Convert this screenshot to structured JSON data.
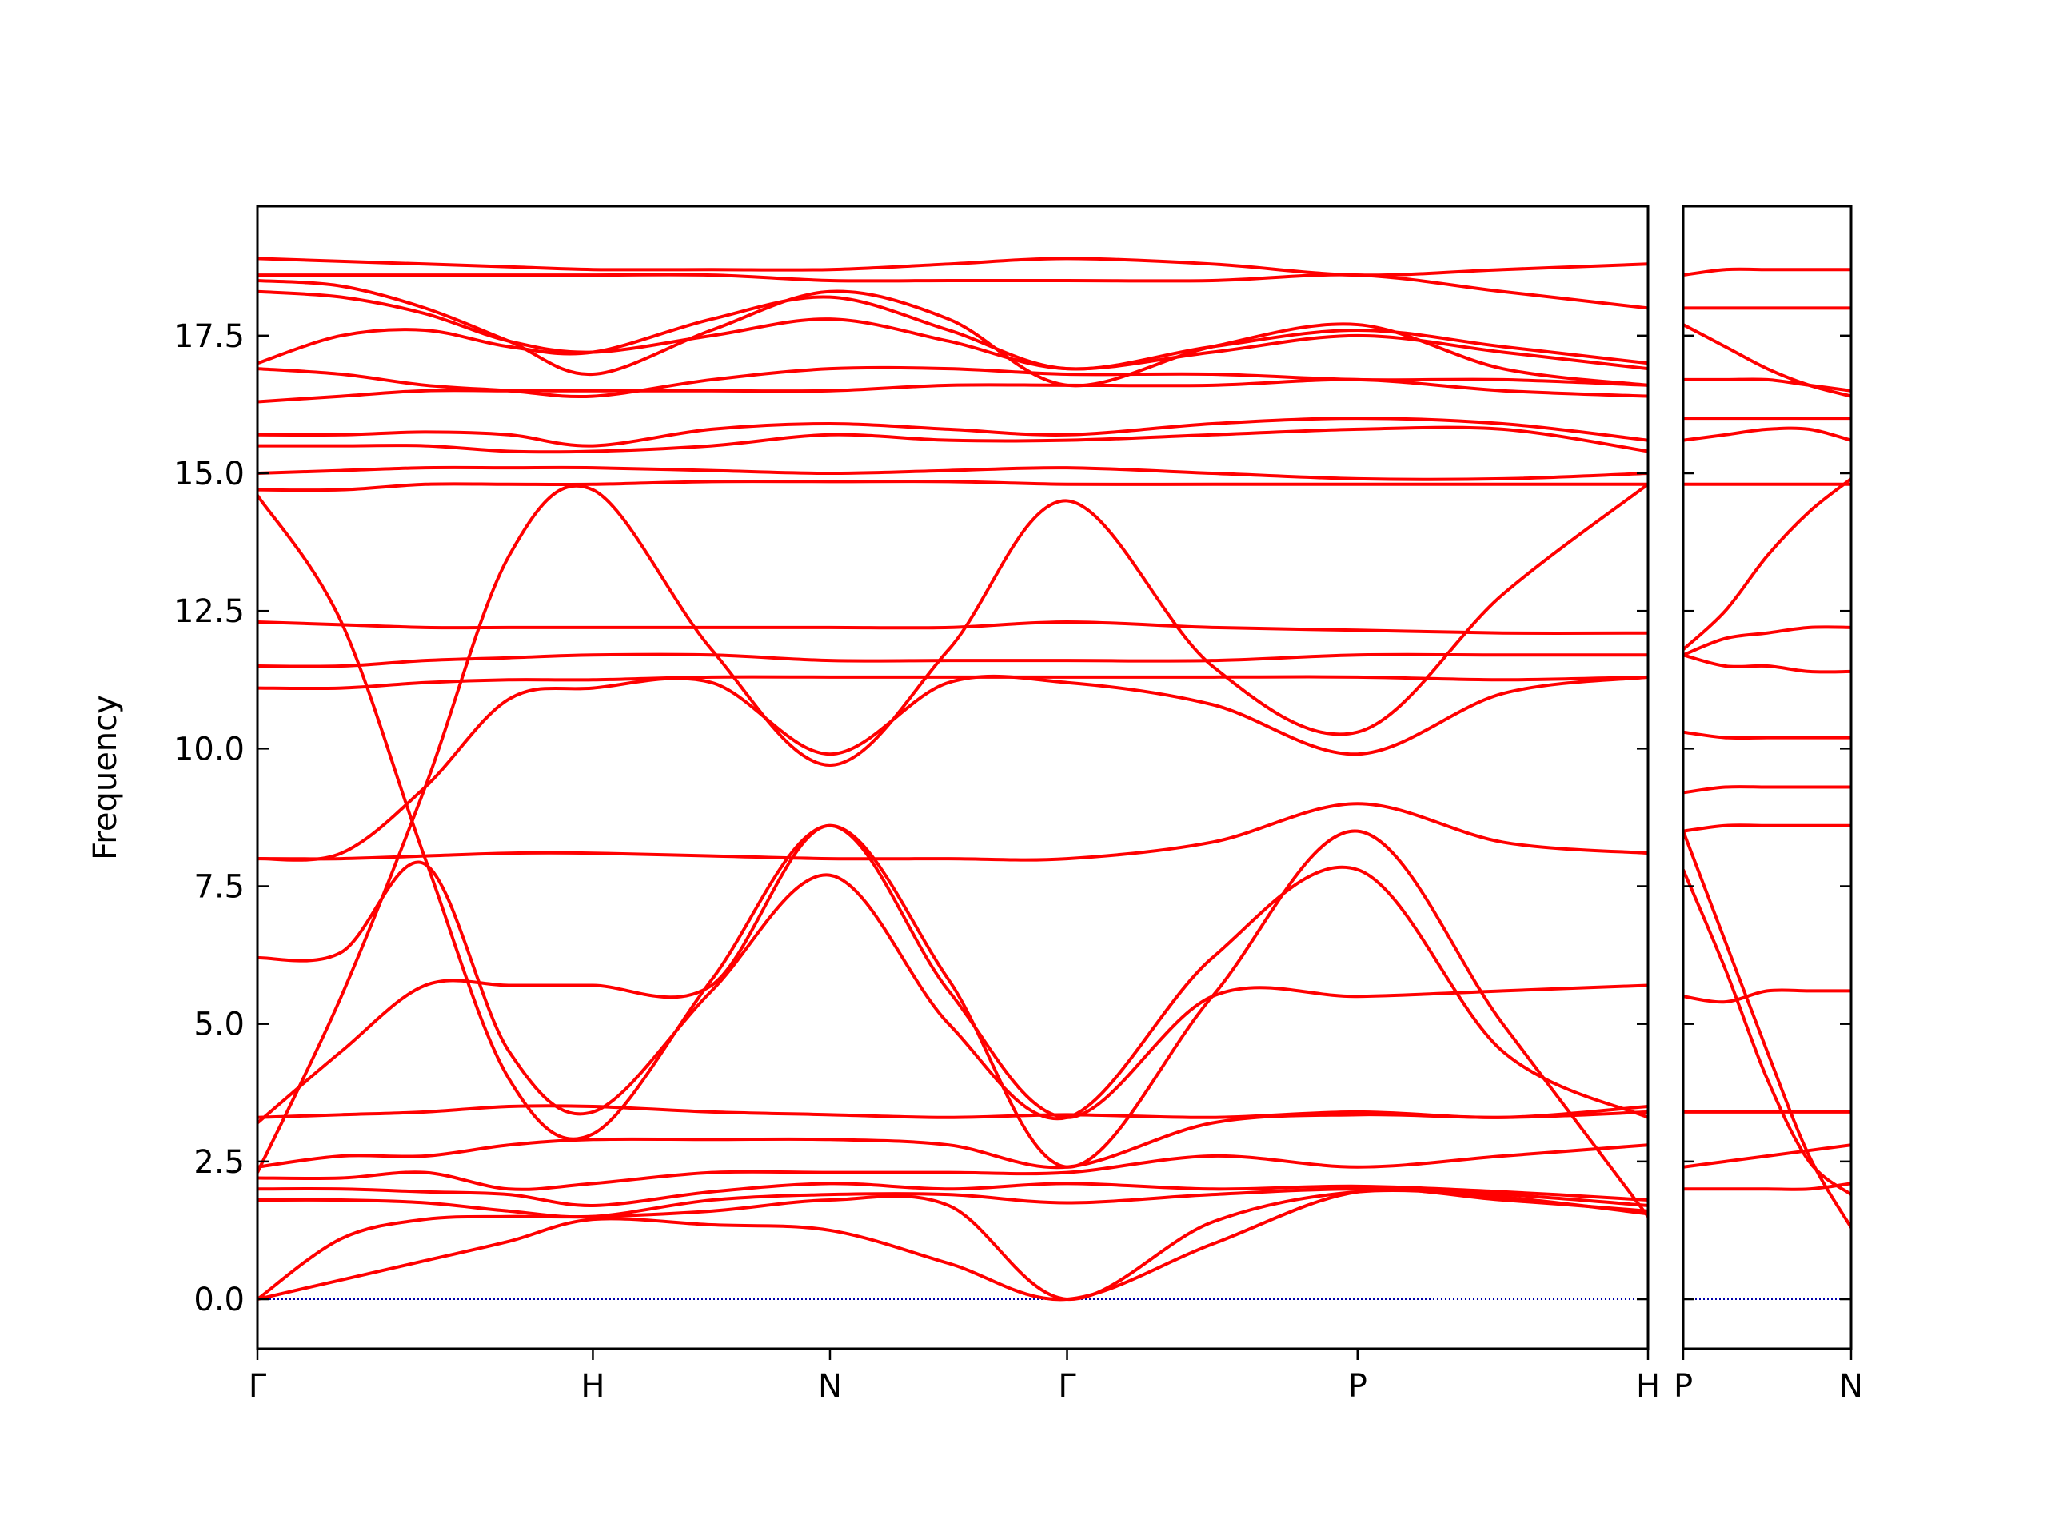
{
  "chart_data": [
    {
      "type": "line",
      "ylabel": "Frequency",
      "color": "#ff0000",
      "xlim": [
        0,
        4.146
      ],
      "ylim": [
        -0.9,
        19.85
      ],
      "xticks": [
        {
          "value": 0,
          "label": "Γ"
        },
        {
          "value": 1,
          "label": "H"
        },
        {
          "value": 1.707,
          "label": "N"
        },
        {
          "value": 2.414,
          "label": "Γ"
        },
        {
          "value": 3.28,
          "label": "P"
        },
        {
          "value": 4.146,
          "label": "H"
        }
      ],
      "yticks": [
        {
          "value": 0,
          "label": "0.0"
        },
        2.5,
        {
          "value": 5,
          "label": "5.0"
        },
        7.5,
        {
          "value": 10,
          "label": "10.0"
        },
        12.5,
        {
          "value": 15,
          "label": "15.0"
        },
        17.5
      ],
      "ytick_labels": true,
      "hline": 0,
      "hline_color": "#0000aa",
      "x": [
        0,
        0.25,
        0.5,
        0.75,
        1,
        1.354,
        1.707,
        2.061,
        2.414,
        2.847,
        3.28,
        3.713,
        4.146
      ],
      "series": [
        {
          "values": [
            0,
            0.35,
            0.7,
            1.05,
            1.45,
            1.35,
            1.25,
            0.65,
            0,
            1.0,
            1.95,
            1.8,
            1.6
          ]
        },
        {
          "values": [
            0,
            1.1,
            1.45,
            1.5,
            1.5,
            1.6,
            1.8,
            1.7,
            0,
            1.4,
            1.95,
            1.85,
            1.55
          ]
        },
        {
          "values": [
            1.8,
            1.8,
            1.75,
            1.6,
            1.5,
            1.8,
            1.9,
            1.9,
            1.75,
            1.9,
            2.0,
            1.9,
            1.7
          ]
        },
        {
          "values": [
            2.0,
            2.0,
            1.95,
            1.9,
            1.7,
            1.95,
            2.1,
            2.0,
            2.1,
            2.0,
            2.05,
            1.95,
            1.8
          ]
        },
        {
          "values": [
            2.2,
            2.2,
            2.3,
            2.0,
            2.1,
            2.3,
            2.3,
            2.3,
            2.3,
            2.6,
            2.4,
            2.6,
            2.8
          ]
        },
        {
          "values": [
            2.4,
            2.6,
            2.6,
            2.8,
            2.9,
            2.9,
            2.9,
            2.8,
            2.4,
            3.2,
            3.35,
            3.3,
            3.4
          ]
        },
        {
          "values": [
            3.3,
            3.35,
            3.4,
            3.5,
            3.5,
            3.4,
            3.35,
            3.3,
            3.35,
            3.3,
            3.4,
            3.3,
            3.5
          ]
        },
        {
          "values": [
            14.6,
            12.3,
            8.0,
            4.0,
            3.0,
            5.8,
            8.6,
            5.8,
            2.4,
            5.5,
            8.5,
            5.0,
            1.5
          ]
        },
        {
          "values": [
            2.3,
            5.5,
            9.3,
            13.5,
            14.7,
            11.8,
            9.7,
            11.8,
            14.5,
            11.5,
            10.3,
            12.8,
            14.8
          ]
        },
        {
          "values": [
            6.2,
            6.3,
            7.9,
            4.5,
            3.4,
            5.6,
            7.7,
            5.0,
            3.3,
            6.2,
            7.8,
            4.5,
            3.3
          ]
        },
        {
          "values": [
            8.0,
            8.1,
            9.3,
            10.9,
            11.1,
            11.2,
            9.9,
            11.2,
            11.2,
            10.8,
            9.9,
            11.0,
            11.3
          ]
        },
        {
          "values": [
            3.2,
            4.5,
            5.7,
            5.7,
            5.7,
            5.7,
            8.6,
            5.6,
            3.3,
            5.5,
            5.5,
            5.6,
            5.7
          ]
        },
        {
          "values": [
            8.0,
            8.0,
            8.05,
            8.1,
            8.1,
            8.05,
            8.0,
            8.0,
            8.0,
            8.3,
            9.0,
            8.3,
            8.1
          ]
        },
        {
          "values": [
            11.1,
            11.1,
            11.2,
            11.25,
            11.25,
            11.3,
            11.3,
            11.3,
            11.3,
            11.3,
            11.3,
            11.25,
            11.3
          ]
        },
        {
          "values": [
            11.5,
            11.5,
            11.6,
            11.65,
            11.7,
            11.7,
            11.6,
            11.6,
            11.6,
            11.6,
            11.7,
            11.7,
            11.7
          ]
        },
        {
          "values": [
            12.3,
            12.25,
            12.2,
            12.2,
            12.2,
            12.2,
            12.2,
            12.2,
            12.3,
            12.2,
            12.15,
            12.1,
            12.1
          ]
        },
        {
          "values": [
            14.7,
            14.7,
            14.8,
            14.8,
            14.8,
            14.85,
            14.85,
            14.85,
            14.8,
            14.8,
            14.8,
            14.8,
            14.8
          ]
        },
        {
          "values": [
            15.0,
            15.05,
            15.1,
            15.1,
            15.1,
            15.05,
            15.0,
            15.05,
            15.1,
            15.0,
            14.9,
            14.9,
            15.0
          ]
        },
        {
          "values": [
            15.5,
            15.5,
            15.5,
            15.4,
            15.4,
            15.5,
            15.7,
            15.6,
            15.6,
            15.7,
            15.8,
            15.8,
            15.4
          ]
        },
        {
          "values": [
            15.7,
            15.7,
            15.75,
            15.7,
            15.5,
            15.8,
            15.9,
            15.8,
            15.7,
            15.9,
            16.0,
            15.9,
            15.6
          ]
        },
        {
          "values": [
            16.3,
            16.4,
            16.5,
            16.5,
            16.5,
            16.5,
            16.5,
            16.6,
            16.6,
            16.6,
            16.7,
            16.5,
            16.4
          ]
        },
        {
          "values": [
            16.9,
            16.8,
            16.6,
            16.5,
            16.4,
            16.7,
            16.9,
            16.9,
            16.8,
            16.8,
            16.7,
            16.7,
            16.6
          ]
        },
        {
          "values": [
            17.0,
            17.5,
            17.6,
            17.3,
            17.2,
            17.8,
            18.2,
            17.6,
            16.9,
            17.3,
            17.6,
            17.3,
            17.0
          ]
        },
        {
          "values": [
            18.3,
            18.2,
            17.9,
            17.4,
            17.2,
            17.5,
            17.8,
            17.4,
            16.9,
            17.2,
            17.5,
            17.2,
            16.9
          ]
        },
        {
          "values": [
            18.5,
            18.4,
            18.0,
            17.4,
            16.8,
            17.6,
            18.3,
            17.8,
            16.6,
            17.3,
            17.7,
            16.9,
            16.6
          ]
        },
        {
          "values": [
            18.6,
            18.6,
            18.6,
            18.6,
            18.6,
            18.6,
            18.5,
            18.5,
            18.5,
            18.5,
            18.6,
            18.3,
            18.0
          ]
        },
        {
          "values": [
            18.9,
            18.85,
            18.8,
            18.75,
            18.7,
            18.7,
            18.7,
            18.8,
            18.9,
            18.8,
            18.6,
            18.7,
            18.8
          ]
        }
      ]
    },
    {
      "type": "line",
      "color": "#ff0000",
      "xlim": [
        0,
        0.5
      ],
      "ylim": [
        -0.9,
        19.85
      ],
      "xticks": [
        {
          "value": 0,
          "label": "P"
        },
        {
          "value": 0.5,
          "label": "N"
        }
      ],
      "yticks": [
        0,
        2.5,
        5,
        7.5,
        10,
        12.5,
        15,
        17.5
      ],
      "ytick_labels": false,
      "hline": 0,
      "hline_color": "#0000aa",
      "x": [
        0,
        0.125,
        0.25,
        0.375,
        0.5
      ],
      "series": [
        {
          "values": [
            8.5,
            6.5,
            4.5,
            2.6,
            1.3
          ]
        },
        {
          "values": [
            7.8,
            6.0,
            4.0,
            2.5,
            1.9
          ]
        },
        {
          "values": [
            2.0,
            2.0,
            2.0,
            2.0,
            2.1
          ]
        },
        {
          "values": [
            2.4,
            2.5,
            2.6,
            2.7,
            2.8
          ]
        },
        {
          "values": [
            3.4,
            3.4,
            3.4,
            3.4,
            3.4
          ]
        },
        {
          "values": [
            5.5,
            5.4,
            5.6,
            5.6,
            5.6
          ]
        },
        {
          "values": [
            8.5,
            8.6,
            8.6,
            8.6,
            8.6
          ]
        },
        {
          "values": [
            9.2,
            9.3,
            9.3,
            9.3,
            9.3
          ]
        },
        {
          "values": [
            10.3,
            10.2,
            10.2,
            10.2,
            10.2
          ]
        },
        {
          "values": [
            11.7,
            11.5,
            11.5,
            11.4,
            11.4
          ]
        },
        {
          "values": [
            11.7,
            12.0,
            12.1,
            12.2,
            12.2
          ]
        },
        {
          "values": [
            11.8,
            12.5,
            13.5,
            14.3,
            14.9
          ]
        },
        {
          "values": [
            14.8,
            14.8,
            14.8,
            14.8,
            14.8
          ]
        },
        {
          "values": [
            15.6,
            15.7,
            15.8,
            15.8,
            15.6
          ]
        },
        {
          "values": [
            16.0,
            16.0,
            16.0,
            16.0,
            16.0
          ]
        },
        {
          "values": [
            16.7,
            16.7,
            16.7,
            16.6,
            16.5
          ]
        },
        {
          "values": [
            17.7,
            17.3,
            16.9,
            16.6,
            16.4
          ]
        },
        {
          "values": [
            18.0,
            18.0,
            18.0,
            18.0,
            18.0
          ]
        },
        {
          "values": [
            18.6,
            18.7,
            18.7,
            18.7,
            18.7
          ]
        }
      ]
    }
  ]
}
